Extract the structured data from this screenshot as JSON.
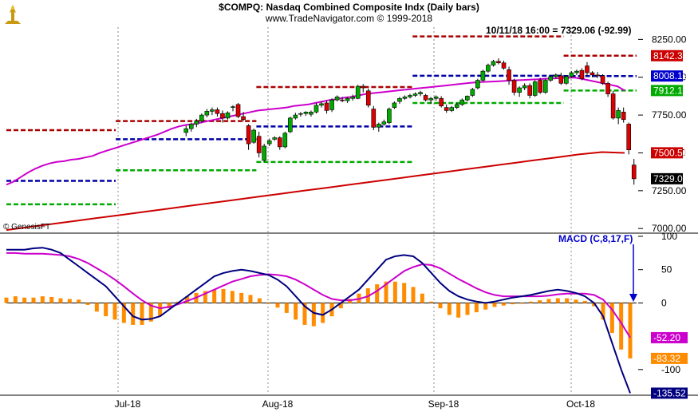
{
  "header": {
    "title": "$COMPQ:  Nasdaq Combined Composite Indx  (Daily bars)",
    "copyright": "www.TradeNavigator.com © 1999-2018",
    "readout": "10/11/18 16:00 = 7329.06 (-92.99)",
    "provider": "© GenesisFT",
    "logo_icon": "trade-navigator-logo-icon"
  },
  "colors": {
    "up": "#00aa00",
    "down": "#dd0000",
    "ma_short": "#cc00cc",
    "ma_long": "#cc0000",
    "pivot_r1": "#aa0000",
    "pivot": "#0000aa",
    "pivot_s1": "#00aa00",
    "macd": "#000080",
    "signal": "#cc00cc",
    "hist": "#ff8c00"
  },
  "chart_data": [
    {
      "type": "candlestick",
      "title": "$COMPQ:  Nasdaq Combined Composite Indx  (Daily bars)",
      "x_labels": [
        "Jul-18",
        "Aug-18",
        "Sep-18",
        "Oct-18"
      ],
      "y_ticks": [
        7000,
        7250,
        7500,
        7750,
        8000,
        8250
      ],
      "ylim": [
        6980,
        8310
      ],
      "grid": "vertical dashed at month starts",
      "bars": [
        {
          "o": 7635,
          "h": 7680,
          "l": 7610,
          "c": 7660
        },
        {
          "o": 7660,
          "h": 7700,
          "l": 7640,
          "c": 7690
        },
        {
          "o": 7690,
          "h": 7725,
          "l": 7670,
          "c": 7710
        },
        {
          "o": 7710,
          "h": 7760,
          "l": 7700,
          "c": 7750
        },
        {
          "o": 7750,
          "h": 7790,
          "l": 7735,
          "c": 7775
        },
        {
          "o": 7775,
          "h": 7800,
          "l": 7750,
          "c": 7785
        },
        {
          "o": 7785,
          "h": 7800,
          "l": 7740,
          "c": 7760
        },
        {
          "o": 7760,
          "h": 7780,
          "l": 7700,
          "c": 7730
        },
        {
          "o": 7730,
          "h": 7775,
          "l": 7720,
          "c": 7765
        },
        {
          "o": 7800,
          "h": 7815,
          "l": 7775,
          "c": 7805
        },
        {
          "o": 7820,
          "h": 7830,
          "l": 7730,
          "c": 7740
        },
        {
          "o": 7740,
          "h": 7770,
          "l": 7710,
          "c": 7720
        },
        {
          "o": 7680,
          "h": 7690,
          "l": 7520,
          "c": 7560
        },
        {
          "o": 7570,
          "h": 7660,
          "l": 7560,
          "c": 7650
        },
        {
          "o": 7610,
          "h": 7640,
          "l": 7470,
          "c": 7500
        },
        {
          "o": 7450,
          "h": 7560,
          "l": 7440,
          "c": 7545
        },
        {
          "o": 7560,
          "h": 7595,
          "l": 7545,
          "c": 7580
        },
        {
          "o": 7590,
          "h": 7610,
          "l": 7580,
          "c": 7600
        },
        {
          "o": 7600,
          "h": 7610,
          "l": 7520,
          "c": 7540
        },
        {
          "o": 7540,
          "h": 7640,
          "l": 7530,
          "c": 7630
        },
        {
          "o": 7640,
          "h": 7740,
          "l": 7630,
          "c": 7730
        },
        {
          "o": 7730,
          "h": 7765,
          "l": 7720,
          "c": 7750
        },
        {
          "o": 7755,
          "h": 7770,
          "l": 7740,
          "c": 7760
        },
        {
          "o": 7760,
          "h": 7775,
          "l": 7745,
          "c": 7770
        },
        {
          "o": 7755,
          "h": 7780,
          "l": 7740,
          "c": 7770
        },
        {
          "o": 7770,
          "h": 7830,
          "l": 7760,
          "c": 7815
        },
        {
          "o": 7815,
          "h": 7840,
          "l": 7800,
          "c": 7825
        },
        {
          "o": 7830,
          "h": 7845,
          "l": 7760,
          "c": 7780
        },
        {
          "o": 7785,
          "h": 7860,
          "l": 7770,
          "c": 7850
        },
        {
          "o": 7850,
          "h": 7880,
          "l": 7840,
          "c": 7870
        },
        {
          "o": 7850,
          "h": 7870,
          "l": 7835,
          "c": 7845
        },
        {
          "o": 7845,
          "h": 7870,
          "l": 7830,
          "c": 7860
        },
        {
          "o": 7860,
          "h": 7885,
          "l": 7845,
          "c": 7870
        },
        {
          "o": 7860,
          "h": 7950,
          "l": 7855,
          "c": 7940
        },
        {
          "o": 7940,
          "h": 7955,
          "l": 7900,
          "c": 7930
        },
        {
          "o": 7910,
          "h": 7925,
          "l": 7800,
          "c": 7815
        },
        {
          "o": 7790,
          "h": 7810,
          "l": 7650,
          "c": 7670
        },
        {
          "o": 7670,
          "h": 7700,
          "l": 7640,
          "c": 7690
        },
        {
          "o": 7690,
          "h": 7720,
          "l": 7680,
          "c": 7705
        },
        {
          "o": 7700,
          "h": 7800,
          "l": 7690,
          "c": 7790
        },
        {
          "o": 7800,
          "h": 7840,
          "l": 7790,
          "c": 7830
        },
        {
          "o": 7840,
          "h": 7870,
          "l": 7825,
          "c": 7860
        },
        {
          "o": 7860,
          "h": 7880,
          "l": 7850,
          "c": 7870
        },
        {
          "o": 7870,
          "h": 7890,
          "l": 7860,
          "c": 7880
        },
        {
          "o": 7880,
          "h": 7900,
          "l": 7870,
          "c": 7890
        },
        {
          "o": 7890,
          "h": 7910,
          "l": 7875,
          "c": 7900
        },
        {
          "o": 7880,
          "h": 7890,
          "l": 7840,
          "c": 7850
        },
        {
          "o": 7850,
          "h": 7870,
          "l": 7825,
          "c": 7860
        },
        {
          "o": 7860,
          "h": 7880,
          "l": 7845,
          "c": 7870
        },
        {
          "o": 7860,
          "h": 7875,
          "l": 7800,
          "c": 7810
        },
        {
          "o": 7800,
          "h": 7820,
          "l": 7765,
          "c": 7780
        },
        {
          "o": 7780,
          "h": 7810,
          "l": 7770,
          "c": 7800
        },
        {
          "o": 7800,
          "h": 7830,
          "l": 7790,
          "c": 7820
        },
        {
          "o": 7820,
          "h": 7860,
          "l": 7810,
          "c": 7850
        },
        {
          "o": 7850,
          "h": 7880,
          "l": 7840,
          "c": 7875
        },
        {
          "o": 7880,
          "h": 7930,
          "l": 7870,
          "c": 7920
        },
        {
          "o": 7930,
          "h": 7990,
          "l": 7920,
          "c": 7980
        },
        {
          "o": 7980,
          "h": 8050,
          "l": 7970,
          "c": 8040
        },
        {
          "o": 8040,
          "h": 8090,
          "l": 8030,
          "c": 8080
        },
        {
          "o": 8080,
          "h": 8115,
          "l": 8070,
          "c": 8105
        },
        {
          "o": 8105,
          "h": 8125,
          "l": 8085,
          "c": 8095
        },
        {
          "o": 8095,
          "h": 8110,
          "l": 8050,
          "c": 8060
        },
        {
          "o": 8050,
          "h": 8070,
          "l": 7950,
          "c": 7980
        },
        {
          "o": 7980,
          "h": 7990,
          "l": 7880,
          "c": 7900
        },
        {
          "o": 7900,
          "h": 7940,
          "l": 7870,
          "c": 7930
        },
        {
          "o": 7930,
          "h": 7960,
          "l": 7915,
          "c": 7945
        },
        {
          "o": 7945,
          "h": 7960,
          "l": 7860,
          "c": 7880
        },
        {
          "o": 7880,
          "h": 7980,
          "l": 7870,
          "c": 7970
        },
        {
          "o": 7980,
          "h": 7995,
          "l": 7890,
          "c": 7900
        },
        {
          "o": 7900,
          "h": 7990,
          "l": 7890,
          "c": 7980
        },
        {
          "o": 7980,
          "h": 8010,
          "l": 7970,
          "c": 8005
        },
        {
          "o": 8005,
          "h": 8025,
          "l": 7990,
          "c": 8015
        },
        {
          "o": 8010,
          "h": 8030,
          "l": 7950,
          "c": 7960
        },
        {
          "o": 7960,
          "h": 8015,
          "l": 7950,
          "c": 8005
        },
        {
          "o": 8005,
          "h": 8040,
          "l": 7995,
          "c": 8030
        },
        {
          "o": 8030,
          "h": 8050,
          "l": 8015,
          "c": 8040
        },
        {
          "o": 8045,
          "h": 8060,
          "l": 7980,
          "c": 7990
        },
        {
          "o": 8075,
          "h": 8100,
          "l": 8010,
          "c": 8030
        },
        {
          "o": 8030,
          "h": 8040,
          "l": 8000,
          "c": 8015
        },
        {
          "o": 8015,
          "h": 8035,
          "l": 7995,
          "c": 8010
        },
        {
          "o": 8010,
          "h": 8020,
          "l": 7950,
          "c": 7960
        },
        {
          "o": 7960,
          "h": 7970,
          "l": 7870,
          "c": 7890
        },
        {
          "o": 7890,
          "h": 7910,
          "l": 7720,
          "c": 7730
        },
        {
          "o": 7730,
          "h": 7800,
          "l": 7690,
          "c": 7780
        },
        {
          "o": 7770,
          "h": 7800,
          "l": 7700,
          "c": 7720
        },
        {
          "o": 7690,
          "h": 7700,
          "l": 7490,
          "c": 7520
        },
        {
          "o": 7420,
          "h": 7460,
          "l": 7290,
          "c": 7329
        }
      ],
      "series": [
        {
          "name": "",
          "kind": "ma_short",
          "values": [
            7290,
            7310,
            7340,
            7370,
            7395,
            7415,
            7430,
            7440,
            7445,
            7455,
            7460,
            7470,
            7480,
            7500,
            7515,
            7530,
            7545,
            7560,
            7575,
            7590,
            7605,
            7620,
            7640,
            7660,
            7675,
            7685,
            7690,
            7700,
            7710,
            7720,
            7730,
            7740,
            7750,
            7760,
            7770,
            7780,
            7785,
            7790,
            7795,
            7800,
            7810,
            7815,
            7820,
            7830,
            7840,
            7850,
            7855,
            7865,
            7870,
            7880,
            7890,
            7895,
            7900,
            7905,
            7910,
            7915,
            7920,
            7925,
            7930,
            7935,
            7940,
            7945,
            7950,
            7955,
            7960,
            7965,
            7968,
            7970,
            7972,
            7975,
            7978,
            7980,
            7982,
            7985,
            7987,
            7990,
            7992,
            7994,
            7996,
            7998,
            7990,
            7980,
            7970,
            7960,
            7950,
            7940,
            7912
          ]
        },
        {
          "name": "",
          "kind": "ma_long",
          "values": [
            6990,
            7010,
            7030,
            7050,
            7070,
            7090,
            7110,
            7130,
            7150,
            7170,
            7190,
            7210,
            7230,
            7250,
            7270,
            7290,
            7310,
            7330,
            7350,
            7370,
            7390,
            7410,
            7430,
            7450,
            7470,
            7490,
            7505,
            7500
          ]
        }
      ],
      "pivots": [
        {
          "x_start": 0,
          "x_end": 20,
          "r1": 7650,
          "pivot": 7315,
          "s1": 7160
        },
        {
          "x_start": 21,
          "x_end": 47,
          "r1": 7710,
          "pivot": 7590,
          "s1": 7385
        },
        {
          "x_start": 48,
          "x_end": 77,
          "r1": 7935,
          "pivot": 7675,
          "s1": 7440
        },
        {
          "x_start": 78,
          "x_end": 106,
          "r1": 8270,
          "pivot": 8010,
          "s1": 7830
        },
        {
          "x_start": 107,
          "x_end": 120,
          "r1": 8142.3,
          "pivot": 8008.12,
          "s1": 7912.16
        }
      ],
      "price_labels": [
        {
          "value": 8142.3,
          "text": "8142.30",
          "color": "#cc0000"
        },
        {
          "value": 8008.12,
          "text": "8008.12",
          "color": "#0000cc"
        },
        {
          "value": 7912.16,
          "text": "7912.16",
          "color": "#00aa00"
        },
        {
          "value": 7500.51,
          "text": "7500.51",
          "color": "#cc0000"
        },
        {
          "value": 7329.06,
          "text": "7329.06",
          "color": "#000000"
        }
      ]
    },
    {
      "type": "line",
      "title": "MACD (C,8,17,F)",
      "y_ticks": [
        -100,
        0,
        50,
        100
      ],
      "ylim": [
        -135,
        100
      ],
      "macd": [
        80,
        80,
        80,
        82,
        83,
        80,
        75,
        65,
        55,
        45,
        35,
        25,
        10,
        -5,
        -20,
        -25,
        -24,
        -20,
        -10,
        0,
        10,
        20,
        30,
        40,
        45,
        48,
        50,
        48,
        45,
        42,
        35,
        25,
        10,
        -5,
        -15,
        -18,
        -10,
        0,
        10,
        20,
        35,
        50,
        65,
        70,
        72,
        70,
        60,
        45,
        30,
        18,
        10,
        5,
        2,
        0,
        2,
        5,
        8,
        10,
        12,
        15,
        18,
        20,
        18,
        15,
        10,
        0,
        -20,
        -60,
        -100,
        -135.52
      ],
      "signal": [
        75,
        75,
        74,
        74,
        74,
        73,
        72,
        70,
        66,
        60,
        52,
        44,
        35,
        25,
        14,
        4,
        -4,
        -8,
        -6,
        -2,
        3,
        8,
        14,
        20,
        26,
        32,
        36,
        40,
        42,
        43,
        42,
        40,
        35,
        28,
        20,
        12,
        6,
        4,
        4,
        6,
        10,
        18,
        28,
        38,
        48,
        54,
        58,
        57,
        52,
        44,
        36,
        29,
        22,
        16,
        12,
        10,
        10,
        10,
        10,
        10,
        11,
        13,
        14,
        14,
        14,
        12,
        5,
        -10,
        -30,
        -52.2
      ],
      "histogram": [
        8,
        10,
        8,
        8,
        10,
        9,
        7,
        6,
        5,
        -3,
        -13,
        -20,
        -25,
        -30,
        -33,
        -33,
        -28,
        -20,
        -8,
        2,
        10,
        15,
        18,
        20,
        21,
        18,
        15,
        12,
        7,
        0,
        -7,
        -15,
        -25,
        -33,
        -35,
        -30,
        -20,
        -8,
        6,
        14,
        22,
        28,
        32,
        32,
        30,
        24,
        14,
        2,
        -8,
        -18,
        -22,
        -18,
        -14,
        -10,
        -6,
        -4,
        -2,
        0,
        2,
        4,
        6,
        7,
        7,
        5,
        3,
        -5,
        -25,
        -45,
        -70,
        -83.32
      ],
      "value_labels": [
        {
          "value": -52.2,
          "text": "-52.20",
          "color": "#cc00cc"
        },
        {
          "value": -83.32,
          "text": "-83.32",
          "color": "#ff8c00"
        },
        {
          "value": -135.52,
          "text": "-135.52",
          "color": "#000080"
        }
      ]
    }
  ]
}
